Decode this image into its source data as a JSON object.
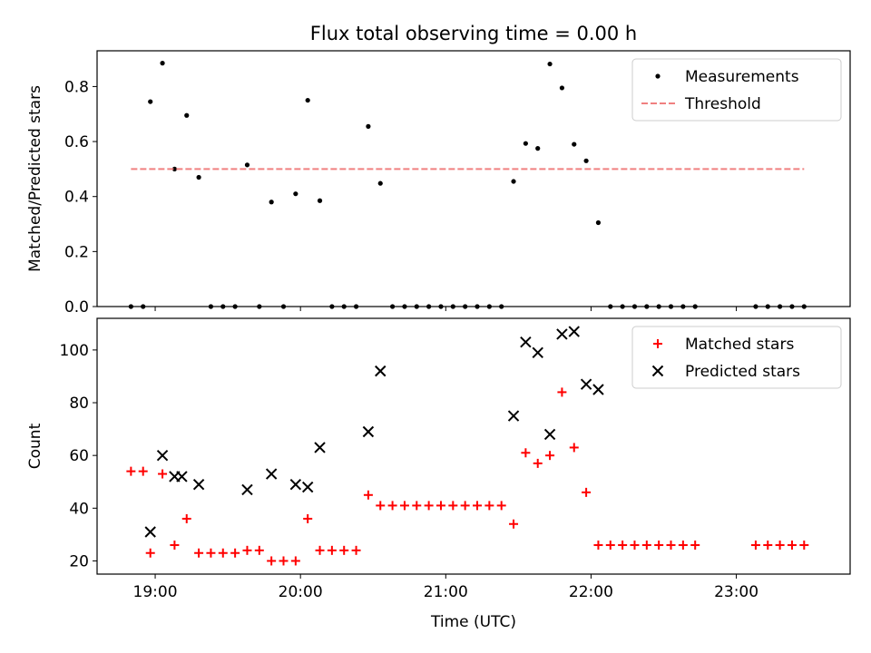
{
  "chart_data": [
    {
      "type": "scatter",
      "title": "Flux total observing time = 0.00 h",
      "xlabel": "",
      "ylabel": "Matched/Predicted stars",
      "x_unit": "UTC time",
      "xlim": [
        "18:36",
        "23:47"
      ],
      "ylim": [
        0,
        0.93
      ],
      "y_ticks": [
        0.0,
        0.2,
        0.4,
        0.6,
        0.8
      ],
      "y_tick_labels": [
        "0.0",
        "0.2",
        "0.4",
        "0.6",
        "0.8"
      ],
      "legend_position": "top-right",
      "series": [
        {
          "name": "Measurements",
          "marker": "dot",
          "color": "#000000",
          "points": [
            [
              "18:50",
              0
            ],
            [
              "18:55",
              0
            ],
            [
              "18:58",
              0.745
            ],
            [
              "19:03",
              0.885
            ],
            [
              "19:08",
              0.5
            ],
            [
              "19:13",
              0.695
            ],
            [
              "19:18",
              0.47
            ],
            [
              "19:23",
              0
            ],
            [
              "19:28",
              0
            ],
            [
              "19:33",
              0
            ],
            [
              "19:38",
              0.515
            ],
            [
              "19:43",
              0
            ],
            [
              "19:48",
              0.38
            ],
            [
              "19:53",
              0
            ],
            [
              "19:58",
              0.41
            ],
            [
              "20:03",
              0.75
            ],
            [
              "20:08",
              0.385
            ],
            [
              "20:13",
              0
            ],
            [
              "20:18",
              0
            ],
            [
              "20:23",
              0
            ],
            [
              "20:28",
              0.655
            ],
            [
              "20:33",
              0.448
            ],
            [
              "20:38",
              0
            ],
            [
              "20:43",
              0
            ],
            [
              "20:48",
              0
            ],
            [
              "20:53",
              0
            ],
            [
              "20:58",
              0
            ],
            [
              "21:03",
              0
            ],
            [
              "21:08",
              0
            ],
            [
              "21:13",
              0
            ],
            [
              "21:18",
              0
            ],
            [
              "21:23",
              0
            ],
            [
              "21:28",
              0.455
            ],
            [
              "21:33",
              0.593
            ],
            [
              "21:38",
              0.575
            ],
            [
              "21:43",
              0.882
            ],
            [
              "21:48",
              0.795
            ],
            [
              "21:53",
              0.59
            ],
            [
              "21:58",
              0.53
            ],
            [
              "22:03",
              0.305
            ],
            [
              "22:08",
              0
            ],
            [
              "22:13",
              0
            ],
            [
              "22:18",
              0
            ],
            [
              "22:23",
              0
            ],
            [
              "22:28",
              0
            ],
            [
              "22:33",
              0
            ],
            [
              "22:38",
              0
            ],
            [
              "22:43",
              0
            ],
            [
              "23:08",
              0
            ],
            [
              "23:13",
              0
            ],
            [
              "23:18",
              0
            ],
            [
              "23:23",
              0
            ],
            [
              "23:28",
              0
            ]
          ]
        },
        {
          "name": "Threshold",
          "marker": "dashed-line",
          "color": "#f08080",
          "points": [
            [
              "18:50",
              0.5
            ],
            [
              "23:28",
              0.5
            ]
          ]
        }
      ]
    },
    {
      "type": "scatter",
      "title": "",
      "xlabel": "Time (UTC)",
      "ylabel": "Count",
      "x_unit": "UTC time",
      "xlim": [
        "18:36",
        "23:47"
      ],
      "ylim": [
        15,
        112
      ],
      "x_ticks": [
        "19:00",
        "20:00",
        "21:00",
        "22:00",
        "23:00"
      ],
      "x_tick_labels": [
        "19:00",
        "20:00",
        "21:00",
        "22:00",
        "23:00"
      ],
      "y_ticks": [
        20,
        40,
        60,
        80,
        100
      ],
      "y_tick_labels": [
        "20",
        "40",
        "60",
        "80",
        "100"
      ],
      "legend_position": "top-right",
      "series": [
        {
          "name": "Matched stars",
          "marker": "plus",
          "color": "#ff0000",
          "points": [
            [
              "18:50",
              54
            ],
            [
              "18:55",
              54
            ],
            [
              "18:58",
              23
            ],
            [
              "19:03",
              53
            ],
            [
              "19:08",
              26
            ],
            [
              "19:13",
              36
            ],
            [
              "19:18",
              23
            ],
            [
              "19:23",
              23
            ],
            [
              "19:28",
              23
            ],
            [
              "19:33",
              23
            ],
            [
              "19:38",
              24
            ],
            [
              "19:43",
              24
            ],
            [
              "19:48",
              20
            ],
            [
              "19:53",
              20
            ],
            [
              "19:58",
              20
            ],
            [
              "20:03",
              36
            ],
            [
              "20:08",
              24
            ],
            [
              "20:13",
              24
            ],
            [
              "20:18",
              24
            ],
            [
              "20:23",
              24
            ],
            [
              "20:28",
              45
            ],
            [
              "20:33",
              41
            ],
            [
              "20:38",
              41
            ],
            [
              "20:43",
              41
            ],
            [
              "20:48",
              41
            ],
            [
              "20:53",
              41
            ],
            [
              "20:58",
              41
            ],
            [
              "21:03",
              41
            ],
            [
              "21:08",
              41
            ],
            [
              "21:13",
              41
            ],
            [
              "21:18",
              41
            ],
            [
              "21:23",
              41
            ],
            [
              "21:28",
              34
            ],
            [
              "21:33",
              61
            ],
            [
              "21:38",
              57
            ],
            [
              "21:43",
              60
            ],
            [
              "21:48",
              84
            ],
            [
              "21:53",
              63
            ],
            [
              "21:58",
              46
            ],
            [
              "22:03",
              26
            ],
            [
              "22:08",
              26
            ],
            [
              "22:13",
              26
            ],
            [
              "22:18",
              26
            ],
            [
              "22:23",
              26
            ],
            [
              "22:28",
              26
            ],
            [
              "22:33",
              26
            ],
            [
              "22:38",
              26
            ],
            [
              "22:43",
              26
            ],
            [
              "23:08",
              26
            ],
            [
              "23:13",
              26
            ],
            [
              "23:18",
              26
            ],
            [
              "23:23",
              26
            ],
            [
              "23:28",
              26
            ]
          ]
        },
        {
          "name": "Predicted stars",
          "marker": "x",
          "color": "#000000",
          "points": [
            [
              "18:58",
              31
            ],
            [
              "19:03",
              60
            ],
            [
              "19:08",
              52
            ],
            [
              "19:11",
              52
            ],
            [
              "19:18",
              49
            ],
            [
              "19:38",
              47
            ],
            [
              "19:48",
              53
            ],
            [
              "19:58",
              49
            ],
            [
              "20:03",
              48
            ],
            [
              "20:08",
              63
            ],
            [
              "20:28",
              69
            ],
            [
              "20:33",
              92
            ],
            [
              "21:28",
              75
            ],
            [
              "21:33",
              103
            ],
            [
              "21:38",
              99
            ],
            [
              "21:43",
              68
            ],
            [
              "21:48",
              106
            ],
            [
              "21:53",
              107
            ],
            [
              "21:58",
              87
            ],
            [
              "22:03",
              85
            ]
          ]
        }
      ]
    }
  ]
}
